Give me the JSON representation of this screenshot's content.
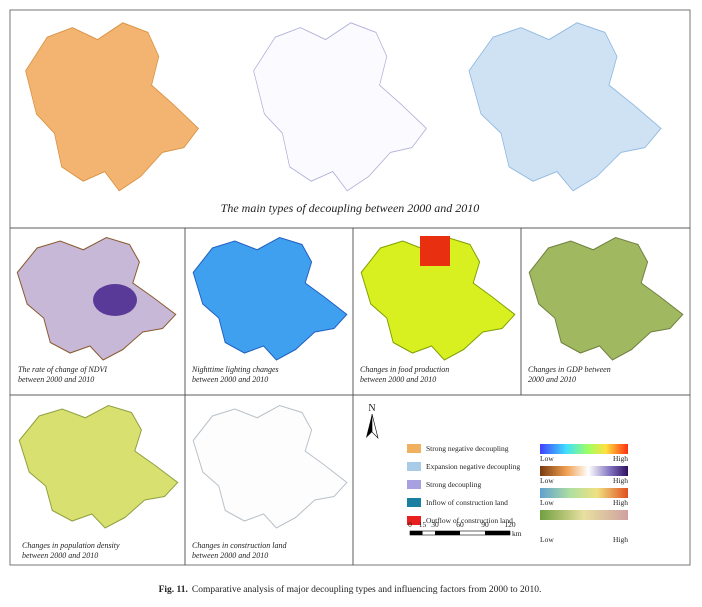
{
  "figure": {
    "top_panel": {
      "title": "The main types of decoupling between 2000 and 2010"
    },
    "panels": [
      {
        "label": [
          "The rate of change of NDVI",
          "between 2000 and 2010"
        ]
      },
      {
        "label": [
          "Nighttime lighting changes",
          "between 2000 and 2010"
        ]
      },
      {
        "label": [
          "Changes in food production",
          "between 2000 and 2010"
        ]
      },
      {
        "label": [
          "Changes in GDP between",
          "2000 and 2010"
        ]
      },
      {
        "label": [
          "Changes in population density",
          "between 2000 and 2010"
        ]
      },
      {
        "label": [
          "Changes in construction land",
          "between 2000 and 2010"
        ]
      }
    ],
    "legend": {
      "north": "N",
      "items": [
        {
          "label": "Strong negative decoupling",
          "color": "#f0b060"
        },
        {
          "label": "Expansion negative decoupling",
          "color": "#a8cce8"
        },
        {
          "label": "Strong decoupling",
          "color": "#a8a0e0"
        },
        {
          "label": "Inflow of construction land",
          "color": "#1a7fa0"
        },
        {
          "label": "Outflow of construction land",
          "color": "#e82020"
        }
      ],
      "gradients": [
        {
          "low": "Low",
          "high": "High"
        },
        {
          "low": "Low",
          "high": "High"
        },
        {
          "low": "Low",
          "high": "High"
        },
        {
          "low": "Low",
          "high": "High"
        }
      ],
      "scale_ticks": [
        "0",
        "15",
        "30",
        "60",
        "90",
        "120"
      ],
      "scale_unit": "km"
    },
    "caption": {
      "number": "Fig. 11.",
      "text": "Comparative analysis of major decoupling types and influencing factors from 2000 to 2010."
    }
  }
}
